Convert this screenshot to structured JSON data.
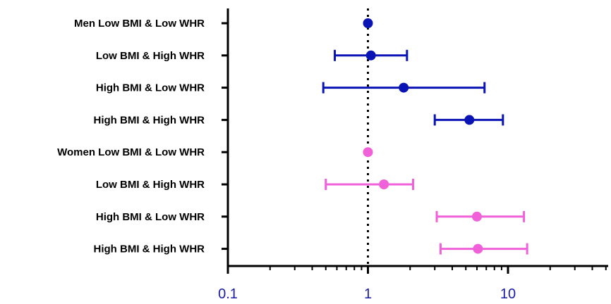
{
  "chart_data": {
    "type": "forest",
    "x_scale": "log",
    "xlim": [
      0.1,
      50
    ],
    "xticks": [
      "0.1",
      "1",
      "10"
    ],
    "reference_line": 1,
    "grid": false,
    "rows": [
      {
        "label": "Men  Low BMI & Low WHR",
        "value": 1.0,
        "low": 1.0,
        "high": 1.0,
        "color": "#0a14b4"
      },
      {
        "label": "Low BMI & High WHR",
        "value": 1.05,
        "low": 0.58,
        "high": 1.9,
        "color": "#0a14b4"
      },
      {
        "label": "High BMI & Low WHR",
        "value": 1.8,
        "low": 0.48,
        "high": 6.8,
        "color": "#0a14b4"
      },
      {
        "label": "High BMI & High WHR",
        "value": 5.3,
        "low": 3.0,
        "high": 9.2,
        "color": "#0a14b4"
      },
      {
        "label": "Women Low BMI & Low WHR",
        "value": 1.0,
        "low": 1.0,
        "high": 1.0,
        "color": "#f060d8"
      },
      {
        "label": "Low BMI & High WHR",
        "value": 1.3,
        "low": 0.5,
        "high": 2.1,
        "color": "#f060d8"
      },
      {
        "label": "High BMI & Low WHR",
        "value": 6.0,
        "low": 3.1,
        "high": 13.0,
        "color": "#f060d8"
      },
      {
        "label": "High BMI & High WHR",
        "value": 6.1,
        "low": 3.3,
        "high": 13.7,
        "color": "#f060d8"
      }
    ]
  }
}
